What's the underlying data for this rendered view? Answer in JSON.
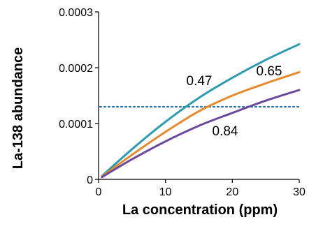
{
  "chart_data": {
    "type": "line",
    "xlabel": "La concentration (ppm)",
    "ylabel": "La-138 abundance",
    "xlim": [
      0,
      30
    ],
    "ylim": [
      0,
      0.0003
    ],
    "x_ticks": [
      0,
      10,
      20,
      30
    ],
    "y_ticks": [
      0,
      0.0001,
      0.0002,
      0.0003
    ],
    "x_tick_labels": [
      "0",
      "10",
      "20",
      "30"
    ],
    "y_tick_labels": [
      "0",
      "0.0001",
      "0.0002",
      "0.0003"
    ],
    "grid": false,
    "series": [
      {
        "name": "0.47",
        "color": "#2e9bb0",
        "x": [
          0.5,
          5,
          10,
          15,
          20,
          25,
          30
        ],
        "y": [
          6e-06,
          5.4e-05,
          0.000103,
          0.000146,
          0.000182,
          0.000214,
          0.000242
        ]
      },
      {
        "name": "0.65",
        "color": "#e58a2e",
        "x": [
          0.5,
          5,
          10,
          15,
          20,
          25,
          30
        ],
        "y": [
          5e-06,
          4.4e-05,
          8.5e-05,
          0.000122,
          0.00015,
          0.000172,
          0.000192
        ]
      },
      {
        "name": "0.84",
        "color": "#6b4a9c",
        "x": [
          0.5,
          5,
          10,
          15,
          20,
          25,
          30
        ],
        "y": [
          4e-06,
          3.6e-05,
          6.8e-05,
          9.6e-05,
          0.000119,
          0.000141,
          0.00016
        ]
      }
    ],
    "reference_line": {
      "y": 0.00013,
      "style": "dotted",
      "color": "#2a6fae"
    }
  }
}
